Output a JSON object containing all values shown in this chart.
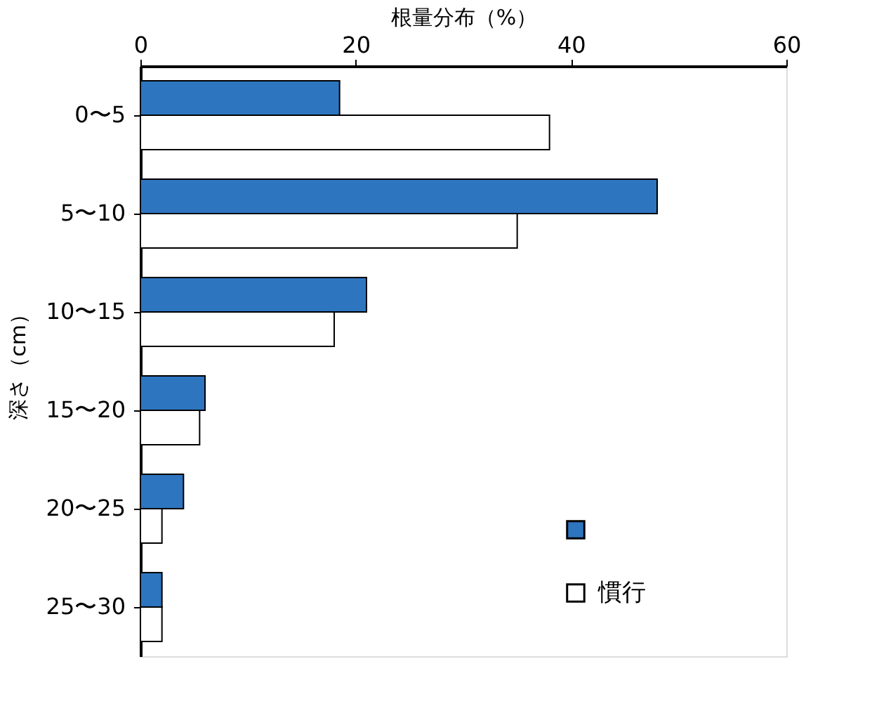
{
  "chart_data": {
    "type": "bar",
    "orientation": "horizontal",
    "xlabel": "根量分布（%）",
    "ylabel": "深さ（cm）",
    "categories": [
      "0〜5",
      "5〜10",
      "10〜15",
      "15〜20",
      "20〜25",
      "25〜30"
    ],
    "series": [
      {
        "color": "#2e75c0",
        "values": [
          18.5,
          48,
          21,
          6,
          4,
          2
        ]
      },
      {
        "name": "慣行",
        "color": "#ffffff",
        "values": [
          38,
          35,
          18,
          5.5,
          2,
          2
        ]
      }
    ],
    "xlim": [
      0,
      60
    ],
    "xticks": [
      0,
      20,
      40,
      60
    ],
    "grid": false,
    "legend": "bottom right"
  }
}
